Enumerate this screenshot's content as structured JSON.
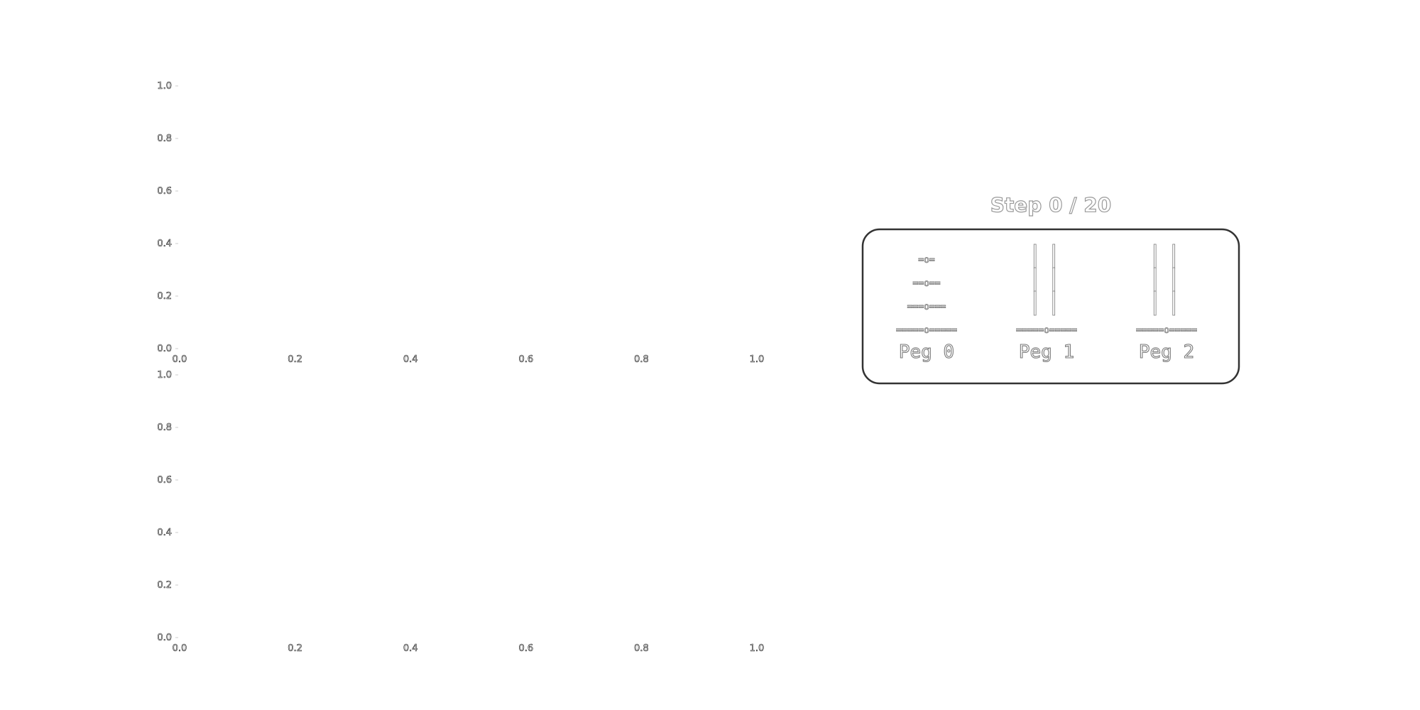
{
  "axes": [
    {
      "x_ticks": [
        "0.0",
        "0.2",
        "0.4",
        "0.6",
        "0.8",
        "1.0"
      ],
      "y_ticks": [
        "0.0",
        "0.2",
        "0.4",
        "0.6",
        "0.8",
        "1.0"
      ]
    },
    {
      "x_ticks": [
        "0.0",
        "0.2",
        "0.4",
        "0.6",
        "0.8",
        "1.0"
      ],
      "y_ticks": [
        "0.0",
        "0.2",
        "0.4",
        "0.6",
        "0.8",
        "1.0"
      ]
    }
  ],
  "game": {
    "step_label": "Step 0 / 20",
    "current_step": 0,
    "total_steps": 20,
    "pegs": [
      {
        "label": "Peg 0",
        "rows": [
          "=o=",
          "==o==",
          "===o===",
          "=====o====="
        ]
      },
      {
        "label": "Peg 1",
        "rows": [
          "||",
          "||",
          "||",
          "=====o====="
        ]
      },
      {
        "label": "Peg 2",
        "rows": [
          "||",
          "||",
          "||",
          "=====o====="
        ]
      }
    ]
  }
}
